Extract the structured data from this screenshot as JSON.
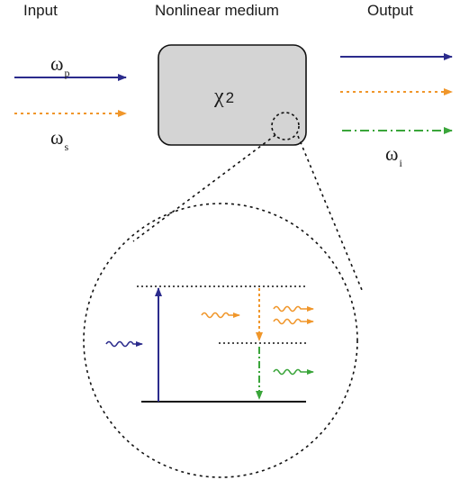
{
  "headers": {
    "input": "Input",
    "medium": "Nonlinear medium",
    "output": "Output"
  },
  "labels": {
    "omega": "ω",
    "pump_sub": "p",
    "signal_sub": "s",
    "idler_sub": "i",
    "chi_symbol": "χ",
    "chi_order": "2"
  },
  "colors": {
    "pump": "#2b2b8c",
    "signal": "#f0962a",
    "idler": "#3aa53a",
    "medium_fill": "#d4d4d4",
    "line": "#111111"
  }
}
